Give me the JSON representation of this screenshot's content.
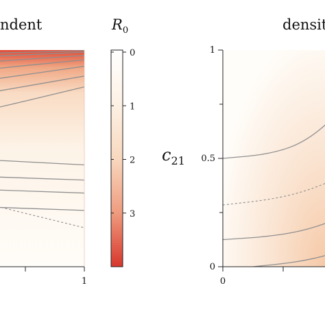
{
  "chart_data": [
    {
      "panel": "left",
      "type": "heatmap",
      "title": "ndent",
      "x_ticks": [
        "1"
      ],
      "y_ticks": [],
      "xlim": [
        0,
        1
      ],
      "ylim": [
        0,
        1
      ],
      "solid_contours": [
        [
          [
            0,
            0.96
          ],
          [
            0.3,
            0.975
          ],
          [
            0.6,
            0.985
          ],
          [
            1.0,
            0.997
          ]
        ],
        [
          [
            0,
            0.93
          ],
          [
            0.3,
            0.95
          ],
          [
            0.6,
            0.97
          ],
          [
            1.0,
            0.99
          ]
        ],
        [
          [
            0,
            0.885
          ],
          [
            0.3,
            0.915
          ],
          [
            0.6,
            0.945
          ],
          [
            1.0,
            0.975
          ]
        ],
        [
          [
            0,
            0.835
          ],
          [
            0.3,
            0.87
          ],
          [
            0.6,
            0.91
          ],
          [
            1.0,
            0.955
          ]
        ],
        [
          [
            0,
            0.77
          ],
          [
            0.3,
            0.81
          ],
          [
            0.6,
            0.86
          ],
          [
            1.0,
            0.925
          ]
        ],
        [
          [
            0,
            0.7
          ],
          [
            0.3,
            0.74
          ],
          [
            0.6,
            0.8
          ],
          [
            1.0,
            0.88
          ]
        ],
        [
          [
            0,
            0.59
          ],
          [
            0.3,
            0.645
          ],
          [
            0.6,
            0.72
          ],
          [
            1.0,
            0.83
          ]
        ],
        [
          [
            0,
            0.52
          ],
          [
            0.5,
            0.5
          ],
          [
            1.0,
            0.47
          ]
        ],
        [
          [
            0,
            0.44
          ],
          [
            0.5,
            0.42
          ],
          [
            1.0,
            0.4
          ]
        ],
        [
          [
            0,
            0.38
          ],
          [
            0.5,
            0.36
          ],
          [
            1.0,
            0.34
          ]
        ],
        [
          [
            0,
            0.3
          ],
          [
            0.5,
            0.28
          ],
          [
            1.0,
            0.26
          ]
        ]
      ],
      "dashed_contours": [
        [
          [
            0,
            0.5
          ],
          [
            0.5,
            0.32
          ],
          [
            1.0,
            0.18
          ]
        ],
        [
          [
            0,
            0.22
          ],
          [
            0.2,
            0.15
          ],
          [
            0.42,
            0.06
          ],
          [
            0.55,
            0.0
          ]
        ]
      ]
    },
    {
      "panel": "colorbar",
      "type": "heatmap",
      "title": "R",
      "title_subscript": "0",
      "ticks": [
        "0",
        "1",
        "2",
        "3"
      ],
      "tick_values": [
        0,
        1,
        2,
        3
      ],
      "range": [
        0,
        4
      ],
      "colors": [
        "#ffffff",
        "#fbe9d8",
        "#f2bfa0",
        "#e35d4a",
        "#d7362c"
      ]
    },
    {
      "panel": "right",
      "type": "heatmap",
      "title": "densit",
      "ylabel": "c",
      "ylabel_subscript": "21",
      "x_ticks": [
        "0"
      ],
      "y_ticks": [
        "0",
        "0.5",
        "1"
      ],
      "xlim": [
        0,
        1
      ],
      "ylim": [
        0,
        1
      ],
      "solid_contours": [
        [
          [
            0,
            0.5
          ],
          [
            0.4,
            0.52
          ],
          [
            0.7,
            0.58
          ],
          [
            1.0,
            0.73
          ]
        ],
        [
          [
            0,
            0.125
          ],
          [
            0.4,
            0.14
          ],
          [
            0.7,
            0.17
          ],
          [
            1.0,
            0.23
          ]
        ],
        [
          [
            0.25,
            0.0
          ],
          [
            0.6,
            0.02
          ],
          [
            0.85,
            0.05
          ],
          [
            1.0,
            0.08
          ]
        ]
      ],
      "dashed_contours": [
        [
          [
            0,
            0.285
          ],
          [
            0.4,
            0.31
          ],
          [
            0.7,
            0.35
          ],
          [
            1.0,
            0.42
          ]
        ]
      ]
    }
  ]
}
